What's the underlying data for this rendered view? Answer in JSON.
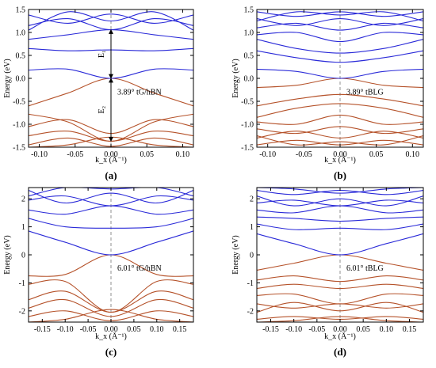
{
  "colors": {
    "valence": "#b5522a",
    "conduction": "#2a2ad8",
    "frame": "#000000"
  },
  "chart_data": [
    {
      "panel": "(a)",
      "type": "line",
      "xlabel": "k_x (Å⁻¹)",
      "ylabel": "Energy (eV)",
      "xlim": [
        -0.115,
        0.115
      ],
      "ylim": [
        -1.5,
        1.5
      ],
      "xticks": [
        "-0.10",
        "-0.05",
        "0.00",
        "0.05",
        "0.10"
      ],
      "yticks": [
        "-1.5",
        "-1.0",
        "-0.5",
        "0.0",
        "0.5",
        "1.0",
        "1.5"
      ],
      "annotation": "3.89° tG/hBN",
      "arrows": [
        {
          "label": "E₁",
          "from": 0.0,
          "to": 1.06
        },
        {
          "label": "E₂",
          "from": -1.37,
          "to": 0.0
        }
      ],
      "conduction_bands": [
        {
          "x": [
            -0.115,
            -0.06,
            0,
            0.06,
            0.115
          ],
          "y": [
            0.18,
            0.2,
            0.0,
            0.2,
            0.18
          ]
        },
        {
          "x": [
            -0.115,
            -0.06,
            0,
            0.06,
            0.115
          ],
          "y": [
            0.65,
            0.6,
            0.62,
            0.6,
            0.65
          ]
        },
        {
          "x": [
            -0.115,
            -0.06,
            0,
            0.06,
            0.115
          ],
          "y": [
            0.85,
            0.95,
            1.06,
            0.95,
            0.85
          ]
        },
        {
          "x": [
            -0.115,
            -0.06,
            0,
            0.06,
            0.115
          ],
          "y": [
            1.15,
            1.3,
            1.06,
            1.3,
            1.15
          ]
        },
        {
          "x": [
            -0.115,
            -0.06,
            0,
            0.06,
            0.115
          ],
          "y": [
            1.38,
            1.2,
            1.4,
            1.2,
            1.38
          ]
        },
        {
          "x": [
            -0.115,
            -0.06,
            0,
            0.06,
            0.115
          ],
          "y": [
            1.05,
            1.45,
            1.25,
            1.45,
            1.05
          ]
        }
      ],
      "valence_bands": [
        {
          "x": [
            -0.115,
            -0.06,
            0,
            0.06,
            0.115
          ],
          "y": [
            -0.6,
            -0.32,
            0.0,
            -0.32,
            -0.6
          ]
        },
        {
          "x": [
            -0.115,
            -0.06,
            0,
            0.06,
            0.115
          ],
          "y": [
            -0.78,
            -0.95,
            -1.37,
            -0.95,
            -0.78
          ]
        },
        {
          "x": [
            -0.115,
            -0.06,
            0,
            0.06,
            0.115
          ],
          "y": [
            -1.05,
            -0.9,
            -1.2,
            -0.9,
            -1.05
          ]
        },
        {
          "x": [
            -0.115,
            -0.06,
            0,
            0.06,
            0.115
          ],
          "y": [
            -1.25,
            -1.15,
            -1.37,
            -1.15,
            -1.25
          ]
        },
        {
          "x": [
            -0.115,
            -0.06,
            0,
            0.06,
            0.115
          ],
          "y": [
            -1.45,
            -1.3,
            -1.48,
            -1.3,
            -1.45
          ]
        },
        {
          "x": [
            -0.115,
            -0.06,
            0,
            0.06,
            0.115
          ],
          "y": [
            -1.5,
            -1.45,
            -1.28,
            -1.45,
            -1.5
          ]
        }
      ]
    },
    {
      "panel": "(b)",
      "type": "line",
      "xlabel": "k_x (Å⁻¹)",
      "ylabel": "Energy (eV)",
      "xlim": [
        -0.115,
        0.115
      ],
      "ylim": [
        -1.5,
        1.5
      ],
      "xticks": [
        "-0.10",
        "-0.05",
        "0.00",
        "0.05",
        "0.10"
      ],
      "yticks": [
        "-1.5",
        "-1.0",
        "-0.5",
        "0.0",
        "0.5",
        "1.0",
        "1.5"
      ],
      "annotation": "3.89° tBLG",
      "conduction_bands": [
        {
          "x": [
            -0.115,
            -0.06,
            0,
            0.06,
            0.115
          ],
          "y": [
            0.2,
            0.15,
            0.0,
            0.15,
            0.2
          ]
        },
        {
          "x": [
            -0.115,
            -0.06,
            0,
            0.06,
            0.115
          ],
          "y": [
            0.6,
            0.45,
            0.35,
            0.45,
            0.6
          ]
        },
        {
          "x": [
            -0.115,
            -0.06,
            0,
            0.06,
            0.115
          ],
          "y": [
            0.85,
            0.65,
            0.55,
            0.65,
            0.85
          ]
        },
        {
          "x": [
            -0.115,
            -0.06,
            0,
            0.06,
            0.115
          ],
          "y": [
            0.95,
            1.0,
            0.8,
            1.0,
            0.95
          ]
        },
        {
          "x": [
            -0.115,
            -0.06,
            0,
            0.06,
            0.115
          ],
          "y": [
            1.1,
            1.2,
            1.05,
            1.2,
            1.1
          ]
        },
        {
          "x": [
            -0.115,
            -0.06,
            0,
            0.06,
            0.115
          ],
          "y": [
            1.3,
            1.15,
            1.3,
            1.15,
            1.3
          ]
        },
        {
          "x": [
            -0.115,
            -0.06,
            0,
            0.06,
            0.115
          ],
          "y": [
            1.45,
            1.35,
            1.45,
            1.35,
            1.45
          ]
        },
        {
          "x": [
            -0.115,
            -0.06,
            0,
            0.06,
            0.115
          ],
          "y": [
            1.25,
            1.45,
            1.38,
            1.45,
            1.25
          ]
        }
      ],
      "valence_bands": [
        {
          "x": [
            -0.115,
            -0.06,
            0,
            0.06,
            0.115
          ],
          "y": [
            -0.2,
            -0.15,
            0.0,
            -0.15,
            -0.2
          ]
        },
        {
          "x": [
            -0.115,
            -0.06,
            0,
            0.06,
            0.115
          ],
          "y": [
            -0.6,
            -0.45,
            -0.35,
            -0.45,
            -0.6
          ]
        },
        {
          "x": [
            -0.115,
            -0.06,
            0,
            0.06,
            0.115
          ],
          "y": [
            -0.85,
            -0.65,
            -0.55,
            -0.65,
            -0.85
          ]
        },
        {
          "x": [
            -0.115,
            -0.06,
            0,
            0.06,
            0.115
          ],
          "y": [
            -0.95,
            -1.0,
            -0.8,
            -1.0,
            -0.95
          ]
        },
        {
          "x": [
            -0.115,
            -0.06,
            0,
            0.06,
            0.115
          ],
          "y": [
            -1.1,
            -1.2,
            -1.05,
            -1.2,
            -1.1
          ]
        },
        {
          "x": [
            -0.115,
            -0.06,
            0,
            0.06,
            0.115
          ],
          "y": [
            -1.3,
            -1.15,
            -1.3,
            -1.15,
            -1.3
          ]
        },
        {
          "x": [
            -0.115,
            -0.06,
            0,
            0.06,
            0.115
          ],
          "y": [
            -1.45,
            -1.35,
            -1.45,
            -1.35,
            -1.45
          ]
        },
        {
          "x": [
            -0.115,
            -0.06,
            0,
            0.06,
            0.115
          ],
          "y": [
            -1.25,
            -1.45,
            -1.38,
            -1.45,
            -1.25
          ]
        }
      ]
    },
    {
      "panel": "(c)",
      "type": "line",
      "xlabel": "k_x (Å⁻¹)",
      "ylabel": "Energy (eV)",
      "xlim": [
        -0.18,
        0.18
      ],
      "ylim": [
        -2.4,
        2.4
      ],
      "xticks": [
        "-0.15",
        "-0.10",
        "-0.05",
        "0.00",
        "0.05",
        "0.10",
        "0.15"
      ],
      "yticks": [
        "-2",
        "-1",
        "0",
        "1",
        "2"
      ],
      "annotation": "6.01° tG/hBN",
      "conduction_bands": [
        {
          "x": [
            -0.18,
            -0.1,
            0,
            0.1,
            0.18
          ],
          "y": [
            0.85,
            0.45,
            0.0,
            0.45,
            0.85
          ]
        },
        {
          "x": [
            -0.18,
            -0.1,
            0,
            0.1,
            0.18
          ],
          "y": [
            1.3,
            1.0,
            0.95,
            1.0,
            1.3
          ]
        },
        {
          "x": [
            -0.18,
            -0.1,
            0,
            0.1,
            0.18
          ],
          "y": [
            1.6,
            1.45,
            1.75,
            1.45,
            1.6
          ]
        },
        {
          "x": [
            -0.18,
            -0.1,
            0,
            0.1,
            0.18
          ],
          "y": [
            1.95,
            2.1,
            1.75,
            2.1,
            1.95
          ]
        },
        {
          "x": [
            -0.18,
            -0.1,
            0,
            0.1,
            0.18
          ],
          "y": [
            2.3,
            1.85,
            2.2,
            1.85,
            2.3
          ]
        },
        {
          "x": [
            -0.18,
            -0.1,
            0,
            0.1,
            0.18
          ],
          "y": [
            2.1,
            2.4,
            2.35,
            2.4,
            2.1
          ]
        }
      ],
      "valence_bands": [
        {
          "x": [
            -0.18,
            -0.1,
            0,
            0.1,
            0.18
          ],
          "y": [
            -0.75,
            -0.7,
            0.0,
            -0.7,
            -0.75
          ]
        },
        {
          "x": [
            -0.18,
            -0.1,
            0,
            0.1,
            0.18
          ],
          "y": [
            -1.05,
            -0.95,
            -2.05,
            -0.95,
            -1.05
          ]
        },
        {
          "x": [
            -0.18,
            -0.1,
            0,
            0.1,
            0.18
          ],
          "y": [
            -1.6,
            -1.3,
            -2.05,
            -1.3,
            -1.6
          ]
        },
        {
          "x": [
            -0.18,
            -0.1,
            0,
            0.1,
            0.18
          ],
          "y": [
            -1.9,
            -1.6,
            -2.2,
            -1.6,
            -1.9
          ]
        },
        {
          "x": [
            -0.18,
            -0.1,
            0,
            0.1,
            0.18
          ],
          "y": [
            -2.2,
            -2.0,
            -2.35,
            -2.0,
            -2.2
          ]
        },
        {
          "x": [
            -0.18,
            -0.1,
            0,
            0.1,
            0.18
          ],
          "y": [
            -2.4,
            -2.3,
            -1.95,
            -2.3,
            -2.4
          ]
        }
      ]
    },
    {
      "panel": "(d)",
      "type": "line",
      "xlabel": "k_x (Å⁻¹)",
      "ylabel": "Energy (eV)",
      "xlim": [
        -0.18,
        0.18
      ],
      "ylim": [
        -2.4,
        2.4
      ],
      "xticks": [
        "-0.15",
        "-0.10",
        "-0.05",
        "0.00",
        "0.05",
        "0.10",
        "0.15"
      ],
      "yticks": [
        "-2",
        "-1",
        "0",
        "1",
        "2"
      ],
      "annotation": "6.01° tBLG",
      "conduction_bands": [
        {
          "x": [
            -0.18,
            -0.1,
            0,
            0.1,
            0.18
          ],
          "y": [
            0.75,
            0.4,
            0.0,
            0.4,
            0.75
          ]
        },
        {
          "x": [
            -0.18,
            -0.1,
            0,
            0.1,
            0.18
          ],
          "y": [
            1.1,
            0.9,
            0.95,
            0.9,
            1.1
          ]
        },
        {
          "x": [
            -0.18,
            -0.1,
            0,
            0.1,
            0.18
          ],
          "y": [
            1.35,
            1.3,
            1.2,
            1.3,
            1.35
          ]
        },
        {
          "x": [
            -0.18,
            -0.1,
            0,
            0.1,
            0.18
          ],
          "y": [
            1.6,
            1.5,
            1.75,
            1.5,
            1.6
          ]
        },
        {
          "x": [
            -0.18,
            -0.1,
            0,
            0.1,
            0.18
          ],
          "y": [
            1.85,
            1.95,
            1.75,
            1.95,
            1.85
          ]
        },
        {
          "x": [
            -0.18,
            -0.1,
            0,
            0.1,
            0.18
          ],
          "y": [
            2.1,
            1.75,
            2.0,
            1.75,
            2.1
          ]
        },
        {
          "x": [
            -0.18,
            -0.1,
            0,
            0.1,
            0.18
          ],
          "y": [
            2.3,
            2.15,
            2.3,
            2.15,
            2.3
          ]
        },
        {
          "x": [
            -0.18,
            -0.1,
            0,
            0.1,
            0.18
          ],
          "y": [
            2.4,
            2.35,
            2.2,
            2.35,
            2.4
          ]
        }
      ],
      "valence_bands": [
        {
          "x": [
            -0.18,
            -0.1,
            0,
            0.1,
            0.18
          ],
          "y": [
            -0.55,
            -0.3,
            0.0,
            -0.3,
            -0.55
          ]
        },
        {
          "x": [
            -0.18,
            -0.1,
            0,
            0.1,
            0.18
          ],
          "y": [
            -0.9,
            -0.75,
            -0.95,
            -0.75,
            -0.9
          ]
        },
        {
          "x": [
            -0.18,
            -0.1,
            0,
            0.1,
            0.18
          ],
          "y": [
            -1.2,
            -1.05,
            -1.2,
            -1.05,
            -1.2
          ]
        },
        {
          "x": [
            -0.18,
            -0.1,
            0,
            0.1,
            0.18
          ],
          "y": [
            -1.45,
            -1.4,
            -1.75,
            -1.4,
            -1.45
          ]
        },
        {
          "x": [
            -0.18,
            -0.1,
            0,
            0.1,
            0.18
          ],
          "y": [
            -1.75,
            -1.9,
            -1.75,
            -1.9,
            -1.75
          ]
        },
        {
          "x": [
            -0.18,
            -0.1,
            0,
            0.1,
            0.18
          ],
          "y": [
            -2.05,
            -1.7,
            -2.0,
            -1.7,
            -2.05
          ]
        },
        {
          "x": [
            -0.18,
            -0.1,
            0,
            0.1,
            0.18
          ],
          "y": [
            -2.3,
            -2.2,
            -2.3,
            -2.2,
            -2.3
          ]
        },
        {
          "x": [
            -0.18,
            -0.1,
            0,
            0.1,
            0.18
          ],
          "y": [
            -2.4,
            -2.35,
            -2.2,
            -2.35,
            -2.4
          ]
        }
      ]
    }
  ]
}
